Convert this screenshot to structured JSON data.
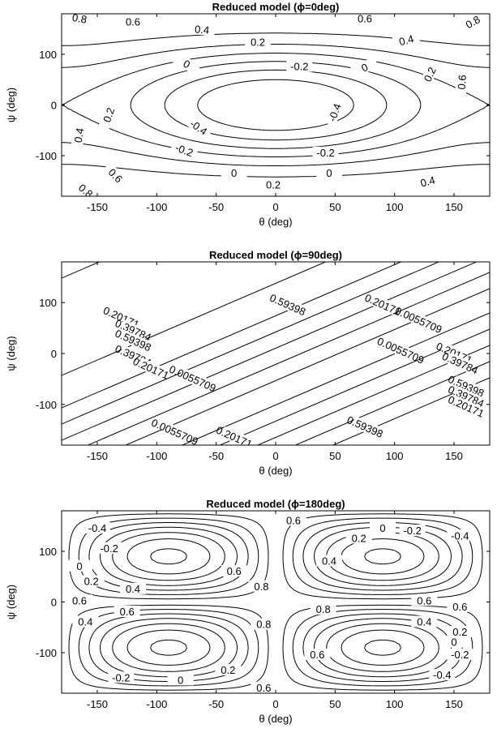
{
  "chart_data": [
    {
      "type": "contour",
      "title": "Reduced model (ϕ=0deg)",
      "xlabel": "θ (deg)",
      "ylabel": "ψ (deg)",
      "xlim": [
        -180,
        180
      ],
      "ylim": [
        -180,
        180
      ],
      "x_ticks": [
        "-150",
        "-100",
        "-50",
        "0",
        "50",
        "100",
        "150"
      ],
      "y_ticks": [
        "100",
        "0",
        "-100"
      ],
      "contour_levels": [
        -0.4,
        -0.2,
        0,
        0.2,
        0.4,
        0.6,
        0.8
      ],
      "labels": [
        {
          "text": "0.8",
          "x": -165,
          "y": 170,
          "rot": -10
        },
        {
          "text": "0.6",
          "x": -120,
          "y": 163,
          "rot": 0
        },
        {
          "text": "0.4",
          "x": -62,
          "y": 148,
          "rot": -5
        },
        {
          "text": "0.2",
          "x": -15,
          "y": 123,
          "rot": 0
        },
        {
          "text": "0",
          "x": -75,
          "y": 80,
          "rot": -30
        },
        {
          "text": "-0.2",
          "x": 20,
          "y": 75,
          "rot": 0
        },
        {
          "text": "0.6",
          "x": 75,
          "y": 170,
          "rot": 0
        },
        {
          "text": "0.4",
          "x": 110,
          "y": 127,
          "rot": 15
        },
        {
          "text": "0",
          "x": 75,
          "y": 73,
          "rot": 25
        },
        {
          "text": "0.2",
          "x": 130,
          "y": 60,
          "rot": 65
        },
        {
          "text": "0.6",
          "x": 157,
          "y": 45,
          "rot": 85
        },
        {
          "text": "0.8",
          "x": 166,
          "y": 163,
          "rot": 30
        },
        {
          "text": "0.2",
          "x": -140,
          "y": -20,
          "rot": 70
        },
        {
          "text": "0.4",
          "x": -165,
          "y": -60,
          "rot": 80
        },
        {
          "text": "-0.4",
          "x": -65,
          "y": -45,
          "rot": -35
        },
        {
          "text": "-0.2",
          "x": -77,
          "y": -90,
          "rot": -20
        },
        {
          "text": "-0.4",
          "x": 50,
          "y": -15,
          "rot": 70
        },
        {
          "text": "0",
          "x": 45,
          "y": -135,
          "rot": 0
        },
        {
          "text": "-0.2",
          "x": 42,
          "y": -95,
          "rot": 0
        },
        {
          "text": "0",
          "x": -35,
          "y": -135,
          "rot": 0
        },
        {
          "text": "0.2",
          "x": -2,
          "y": -158,
          "rot": 0
        },
        {
          "text": "0.4",
          "x": 128,
          "y": -152,
          "rot": 15
        },
        {
          "text": "0.6",
          "x": -135,
          "y": -140,
          "rot": -45
        },
        {
          "text": "0.8",
          "x": -160,
          "y": -170,
          "rot": -40
        },
        {
          "text": "0.4",
          "x": -30,
          "y": -185,
          "rot": 0
        },
        {
          "text": "0.6",
          "x": 95,
          "y": -208,
          "rot": 0
        },
        {
          "text": "0.8",
          "x": 140,
          "y": -212,
          "rot": 0
        }
      ]
    },
    {
      "type": "contour",
      "title": "Reduced model (ϕ=90deg)",
      "xlabel": "θ (deg)",
      "ylabel": "ψ (deg)",
      "xlim": [
        -180,
        180
      ],
      "ylim": [
        -180,
        180
      ],
      "x_ticks": [
        "-150",
        "-100",
        "-50",
        "0",
        "50",
        "100",
        "150"
      ],
      "y_ticks": [
        "100",
        "0",
        "-100"
      ],
      "contour_levels": [
        0.0055709,
        0.20171,
        0.39784,
        0.59398
      ],
      "labels": [
        {
          "text": "0.20171",
          "x": -130,
          "y": 70
        },
        {
          "text": "0.39784",
          "x": -120,
          "y": 45
        },
        {
          "text": "0.59398",
          "x": -120,
          "y": 25
        },
        {
          "text": "0.59398",
          "x": 10,
          "y": 95
        },
        {
          "text": "0.20171",
          "x": 90,
          "y": 95
        },
        {
          "text": "0.0055709",
          "x": 120,
          "y": 65
        },
        {
          "text": "0.39784",
          "x": -120,
          "y": -5
        },
        {
          "text": "0.20171",
          "x": -105,
          "y": -30
        },
        {
          "text": "0.0055709",
          "x": -70,
          "y": -50
        },
        {
          "text": "0.0055709",
          "x": 105,
          "y": 5
        },
        {
          "text": "0.20171",
          "x": 150,
          "y": 0
        },
        {
          "text": "0.39784",
          "x": 155,
          "y": -20
        },
        {
          "text": "0.59398",
          "x": 160,
          "y": -65
        },
        {
          "text": "0.39784",
          "x": 160,
          "y": -85
        },
        {
          "text": "0.20171",
          "x": 160,
          "y": -105
        },
        {
          "text": "0.0055709",
          "x": -85,
          "y": -155
        },
        {
          "text": "0.20171",
          "x": -35,
          "y": -165
        },
        {
          "text": "0.59398",
          "x": 75,
          "y": -145
        }
      ]
    },
    {
      "type": "contour",
      "title": "Reduced model (ϕ=180deg)",
      "xlabel": "θ (deg)",
      "ylabel": "ψ (deg)",
      "xlim": [
        -180,
        180
      ],
      "ylim": [
        -180,
        180
      ],
      "x_ticks": [
        "-150",
        "-100",
        "-50",
        "0",
        "50",
        "100",
        "150"
      ],
      "y_ticks": [
        "100",
        "0",
        "-100"
      ],
      "contour_levels": [
        -0.4,
        -0.2,
        0,
        0.2,
        0.4,
        0.6,
        0.8
      ],
      "labels": [
        {
          "text": "-0.4",
          "x": -150,
          "y": 145
        },
        {
          "text": "-0.2",
          "x": -140,
          "y": 105
        },
        {
          "text": "0",
          "x": -165,
          "y": 70
        },
        {
          "text": "0.2",
          "x": -155,
          "y": 40
        },
        {
          "text": "0.4",
          "x": -120,
          "y": 25
        },
        {
          "text": "0.6",
          "x": -165,
          "y": 2
        },
        {
          "text": "0.6",
          "x": -125,
          "y": -20
        },
        {
          "text": "0.4",
          "x": -160,
          "y": -40
        },
        {
          "text": "0.6",
          "x": -35,
          "y": 60
        },
        {
          "text": "0.6",
          "x": 15,
          "y": 160
        },
        {
          "text": "0.4",
          "x": 45,
          "y": 80
        },
        {
          "text": "0.2",
          "x": 70,
          "y": 125
        },
        {
          "text": "0",
          "x": 90,
          "y": 145
        },
        {
          "text": "-0.2",
          "x": 115,
          "y": 140
        },
        {
          "text": "-0.4",
          "x": 155,
          "y": 130
        },
        {
          "text": "0.8",
          "x": -12,
          "y": 30
        },
        {
          "text": "0.8",
          "x": 40,
          "y": -15
        },
        {
          "text": "0.8",
          "x": -10,
          "y": -45
        },
        {
          "text": "0.6",
          "x": 125,
          "y": 2
        },
        {
          "text": "0.6",
          "x": 155,
          "y": -10
        },
        {
          "text": "0.4",
          "x": 125,
          "y": -40
        },
        {
          "text": "0.2",
          "x": 155,
          "y": -60
        },
        {
          "text": "0",
          "x": 150,
          "y": -80
        },
        {
          "text": "-0.2",
          "x": 155,
          "y": -105
        },
        {
          "text": "-0.4",
          "x": 140,
          "y": -145
        },
        {
          "text": "0.2",
          "x": -40,
          "y": -135
        },
        {
          "text": "0",
          "x": -80,
          "y": -155
        },
        {
          "text": "-0.2",
          "x": -130,
          "y": -150
        },
        {
          "text": "-0.4",
          "x": -165,
          "y": -180
        },
        {
          "text": "0.6",
          "x": -10,
          "y": -170
        },
        {
          "text": "0.6",
          "x": 35,
          "y": -105
        }
      ]
    }
  ]
}
